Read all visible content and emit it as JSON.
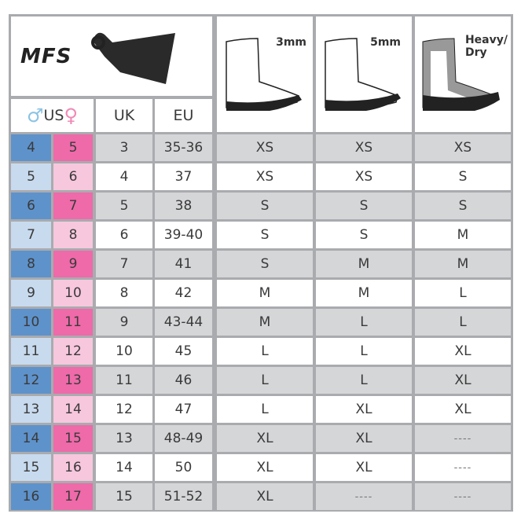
{
  "brand": "MFS",
  "headers": {
    "us": "US",
    "uk": "UK",
    "eu": "EU",
    "boot_3mm": "3mm",
    "boot_5mm": "5mm",
    "boot_heavy": "Heavy/\nDry"
  },
  "colors": {
    "men_dark": "#5e92cb",
    "men_light": "#c8daee",
    "women_dark": "#ee6aa9",
    "women_light": "#f7c7dd",
    "row_gray": "#d5d6d8"
  },
  "rows": [
    {
      "us_m": "4",
      "us_w": "5",
      "uk": "3",
      "eu": "35-36",
      "s3": "XS",
      "s5": "XS",
      "heavy": "XS"
    },
    {
      "us_m": "5",
      "us_w": "6",
      "uk": "4",
      "eu": "37",
      "s3": "XS",
      "s5": "XS",
      "heavy": "S"
    },
    {
      "us_m": "6",
      "us_w": "7",
      "uk": "5",
      "eu": "38",
      "s3": "S",
      "s5": "S",
      "heavy": "S"
    },
    {
      "us_m": "7",
      "us_w": "8",
      "uk": "6",
      "eu": "39-40",
      "s3": "S",
      "s5": "S",
      "heavy": "M"
    },
    {
      "us_m": "8",
      "us_w": "9",
      "uk": "7",
      "eu": "41",
      "s3": "S",
      "s5": "M",
      "heavy": "M"
    },
    {
      "us_m": "9",
      "us_w": "10",
      "uk": "8",
      "eu": "42",
      "s3": "M",
      "s5": "M",
      "heavy": "L"
    },
    {
      "us_m": "10",
      "us_w": "11",
      "uk": "9",
      "eu": "43-44",
      "s3": "M",
      "s5": "L",
      "heavy": "L"
    },
    {
      "us_m": "11",
      "us_w": "12",
      "uk": "10",
      "eu": "45",
      "s3": "L",
      "s5": "L",
      "heavy": "XL"
    },
    {
      "us_m": "12",
      "us_w": "13",
      "uk": "11",
      "eu": "46",
      "s3": "L",
      "s5": "L",
      "heavy": "XL"
    },
    {
      "us_m": "13",
      "us_w": "14",
      "uk": "12",
      "eu": "47",
      "s3": "L",
      "s5": "XL",
      "heavy": "XL"
    },
    {
      "us_m": "14",
      "us_w": "15",
      "uk": "13",
      "eu": "48-49",
      "s3": "XL",
      "s5": "XL",
      "heavy": "----"
    },
    {
      "us_m": "15",
      "us_w": "16",
      "uk": "14",
      "eu": "50",
      "s3": "XL",
      "s5": "XL",
      "heavy": "----"
    },
    {
      "us_m": "16",
      "us_w": "17",
      "uk": "15",
      "eu": "51-52",
      "s3": "XL",
      "s5": "----",
      "heavy": "----"
    }
  ]
}
